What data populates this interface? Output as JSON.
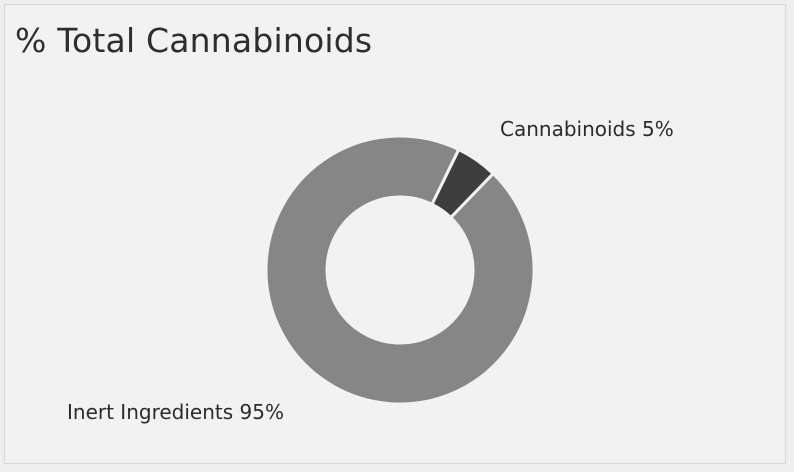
{
  "chart_data": {
    "type": "pie",
    "title": "% Total Cannabinoids",
    "slices": [
      {
        "label": "Inert Ingredients",
        "value": 95,
        "display": "Inert Ingredients 95%",
        "color": "#868686"
      },
      {
        "label": "Cannabinoids",
        "value": 5,
        "display": "Cannabinoids 5%",
        "color": "#3e3e3e"
      }
    ]
  }
}
